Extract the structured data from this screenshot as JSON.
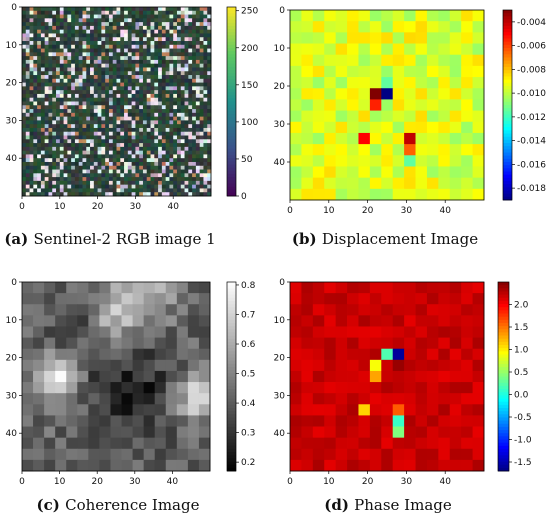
{
  "chart_data": [
    {
      "type": "heatmap",
      "id": "a",
      "label": "(a)",
      "caption": "Sentinel-2 RGB image 1",
      "colormap": "viridis",
      "grid": false,
      "xlim": [
        0,
        50
      ],
      "ylim": [
        50,
        0
      ],
      "xticks": [
        0,
        10,
        20,
        30,
        40
      ],
      "yticks": [
        0,
        10,
        20,
        30,
        40
      ],
      "colorbar": {
        "min": 0,
        "max": 255,
        "ticks": [
          0,
          50,
          100,
          150,
          200,
          250
        ]
      }
    },
    {
      "type": "heatmap",
      "id": "b",
      "label": "(b)",
      "caption": "Displacement Image",
      "colormap": "jet",
      "grid": false,
      "xlim": [
        0,
        50
      ],
      "ylim": [
        50,
        0
      ],
      "xticks": [
        0,
        10,
        20,
        30,
        40
      ],
      "yticks": [
        0,
        10,
        20,
        30,
        40
      ],
      "colorbar": {
        "min": -0.019,
        "max": -0.003,
        "ticks": [
          -0.004,
          -0.006,
          -0.008,
          -0.01,
          -0.012,
          -0.014,
          -0.016,
          -0.018
        ]
      }
    },
    {
      "type": "heatmap",
      "id": "c",
      "label": "(c)",
      "caption": "Coherence Image",
      "colormap": "gray",
      "grid": false,
      "xlim": [
        0,
        50
      ],
      "ylim": [
        50,
        0
      ],
      "xticks": [
        0,
        10,
        20,
        30,
        40
      ],
      "yticks": [
        0,
        10,
        20,
        30,
        40
      ],
      "colorbar": {
        "min": 0.17,
        "max": 0.81,
        "ticks": [
          0.2,
          0.3,
          0.4,
          0.5,
          0.6,
          0.7,
          0.8
        ]
      }
    },
    {
      "type": "heatmap",
      "id": "d",
      "label": "(d)",
      "caption": "Phase Image",
      "colormap": "jet",
      "grid": false,
      "xlim": [
        0,
        50
      ],
      "ylim": [
        50,
        0
      ],
      "xticks": [
        0,
        10,
        20,
        30,
        40
      ],
      "yticks": [
        0,
        10,
        20,
        30,
        40
      ],
      "colorbar": {
        "min": -1.7,
        "max": 2.5,
        "ticks": [
          -1.5,
          -1.0,
          -0.5,
          0.0,
          0.5,
          1.0,
          1.5,
          2.0
        ]
      }
    }
  ]
}
